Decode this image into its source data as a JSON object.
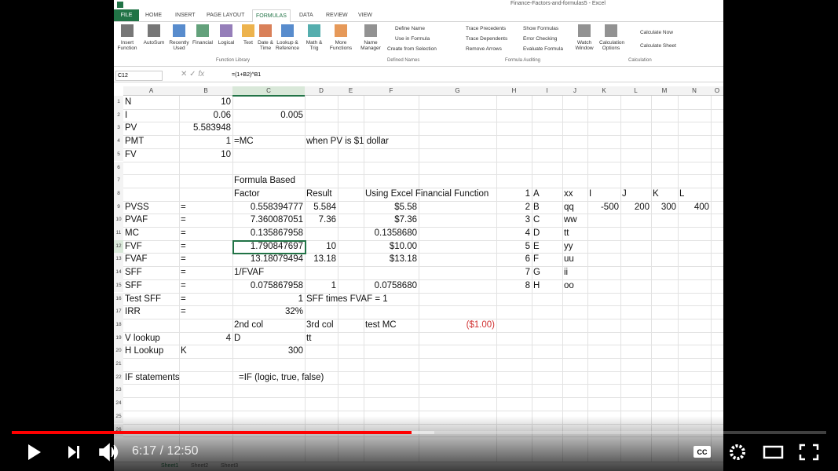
{
  "window": {
    "title": "Finance-Factors-and-formulas5 - Excel"
  },
  "ribbon": {
    "tabs": [
      "FILE",
      "HOME",
      "INSERT",
      "PAGE LAYOUT",
      "FORMULAS",
      "DATA",
      "REVIEW",
      "VIEW"
    ],
    "big_buttons": [
      "Insert Function",
      "AutoSum",
      "Recently Used",
      "Financial",
      "Logical",
      "Text",
      "Date & Time",
      "Lookup & Reference",
      "Math & Trig",
      "More Functions",
      "Name Manager",
      "Watch Window",
      "Calculation Options"
    ],
    "small_buttons": [
      "Define Name",
      "Use in Formula",
      "Create from Selection",
      "Trace Precedents",
      "Trace Dependents",
      "Remove Arrows",
      "Show Formulas",
      "Error Checking",
      "Evaluate Formula",
      "Calculate Now",
      "Calculate Sheet"
    ],
    "groups": [
      "Function Library",
      "Defined Names",
      "Formula Auditing",
      "Calculation"
    ]
  },
  "formula_bar": {
    "name_box": "C12",
    "formula": "=(1+B2)^B1"
  },
  "grid": {
    "columns": [
      "A",
      "B",
      "C",
      "D",
      "E",
      "F",
      "G",
      "H",
      "I",
      "J",
      "K",
      "L",
      "M",
      "N",
      "O"
    ],
    "row_numbers": [
      1,
      2,
      3,
      4,
      5,
      6,
      7,
      8,
      9,
      10,
      11,
      12,
      13,
      14,
      15,
      16,
      17,
      18,
      19,
      20,
      21,
      22,
      23,
      24,
      25,
      26
    ],
    "rows": [
      {
        "A": "N",
        "B": "10"
      },
      {
        "A": "I",
        "B": "0.06",
        "C": "0.005"
      },
      {
        "A": "PV",
        "B": "5.583948"
      },
      {
        "A": "PMT",
        "B": "1",
        "C": "=MC",
        "D": "when PV is $1 dollar"
      },
      {
        "A": "FV",
        "B": "10"
      },
      {},
      {
        "C": "Formula Based"
      },
      {
        "C": "Factor",
        "D": "Result",
        "F": "Using Excel Financial Function",
        "H": "1",
        "I": "A",
        "J": "xx",
        "K": "I",
        "L": "J",
        "M": "K",
        "N": "L"
      },
      {
        "A": "PVSS",
        "B": "=",
        "C": "0.558394777",
        "D": "5.584",
        "F": "$5.58",
        "H": "2",
        "I": "B",
        "J": "qq",
        "K": "-500",
        "L": "200",
        "M": "300",
        "N": "400"
      },
      {
        "A": "PVAF",
        "B": "=",
        "C": "7.360087051",
        "D": "7.36",
        "F": "$7.36",
        "H": "3",
        "I": "C",
        "J": "ww"
      },
      {
        "A": "MC",
        "B": "=",
        "C": "0.135867958",
        "F": "0.1358680",
        "H": "4",
        "I": "D",
        "J": "tt"
      },
      {
        "A": "FVF",
        "B": "=",
        "C": "1.790847697",
        "D": "10",
        "F": "$10.00",
        "H": "5",
        "I": "E",
        "J": "yy"
      },
      {
        "A": "FVAF",
        "B": "=",
        "C": "13.18079494",
        "D": "13.18",
        "F": "$13.18",
        "H": "6",
        "I": "F",
        "J": "uu"
      },
      {
        "A": "SFF",
        "B": "=",
        "C": "1/FVAF",
        "H": "7",
        "I": "G",
        "J": "ii"
      },
      {
        "A": "SFF",
        "B": "=",
        "C": "0.075867958",
        "D": "1",
        "F": "0.0758680",
        "H": "8",
        "I": "H",
        "J": "oo"
      },
      {
        "A": "Test SFF",
        "B": "=",
        "C": "1",
        "D": "SFF times FVAF = 1"
      },
      {
        "A": "IRR",
        "B": "=",
        "C": "32%"
      },
      {
        "C": "2nd col",
        "D": "3rd col",
        "F": "test MC",
        "G": "($1.00)"
      },
      {
        "A": "V lookup",
        "B": "4",
        "C": "D",
        "D": "tt"
      },
      {
        "A": "H Lookup",
        "B": "K",
        "C": "300"
      },
      {},
      {
        "A": "IF statements",
        "C": "=IF (logic, true, false)"
      },
      {},
      {},
      {},
      {}
    ]
  },
  "sheets": [
    "Sheet1",
    "Sheet2",
    "Sheet3"
  ],
  "player": {
    "time": "6:17 / 12:50"
  }
}
